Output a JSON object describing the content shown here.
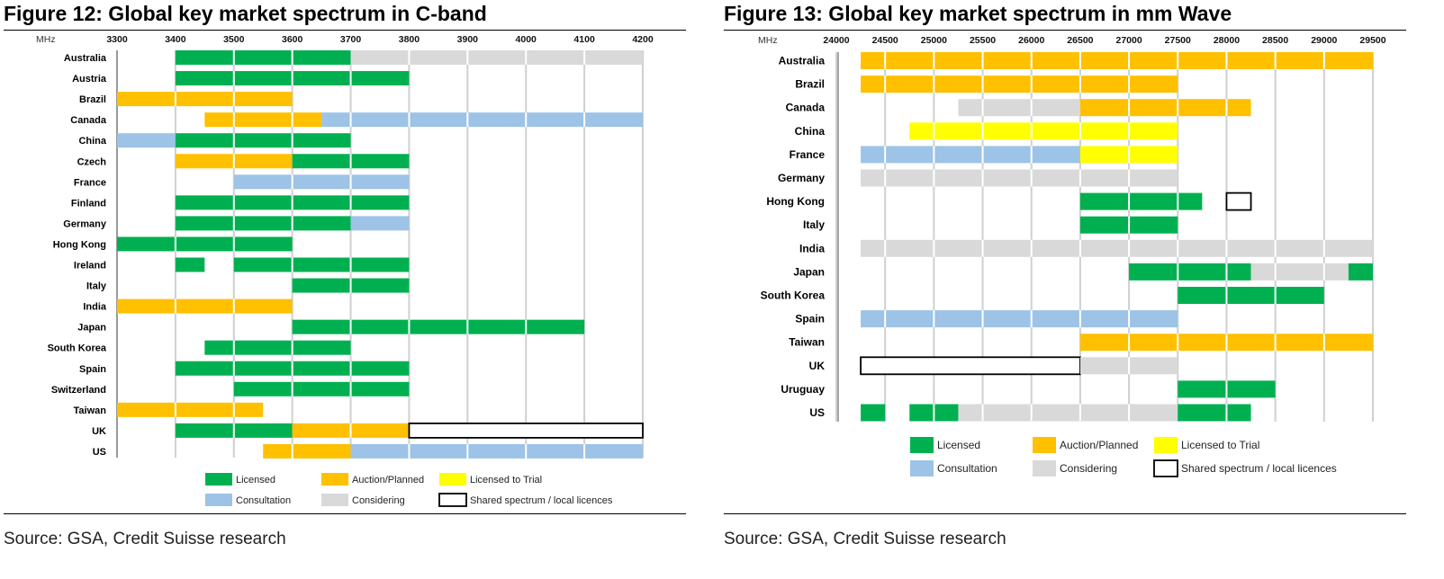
{
  "colors": {
    "Licensed": "#00B050",
    "Auction/Planned": "#FFC000",
    "Licensed to Trial": "#FFFF00",
    "Consultation": "#9DC3E6",
    "Considering": "#D9D9D9",
    "Shared spectrum / local licences": "#FFFFFF"
  },
  "chart_data": [
    {
      "type": "bar",
      "subtype": "horizontal range (spectrum allocation)",
      "title": "Figure 12: Global key market spectrum in C-band",
      "axis_unit": "MHz",
      "axis_position": "top",
      "xlim": [
        3300,
        4200
      ],
      "ticks": [
        "3300",
        "3400",
        "3500",
        "3600",
        "3700",
        "3800",
        "3900",
        "4000",
        "4100",
        "4200"
      ],
      "grid": true,
      "legend_position": "bottom",
      "source": "Source: GSA, Credit Suisse research",
      "legend": [
        [
          "Licensed",
          "Auction/Planned",
          "Licensed to Trial"
        ],
        [
          "Consultation",
          "Considering",
          "Shared spectrum / local licences"
        ]
      ],
      "categories": [
        "Australia",
        "Austria",
        "Brazil",
        "Canada",
        "China",
        "Czech",
        "France",
        "Finland",
        "Germany",
        "Hong Kong",
        "Ireland",
        "Italy",
        "India",
        "Japan",
        "South Korea",
        "Spain",
        "Switzerland",
        "Taiwan",
        "UK",
        "US"
      ],
      "segments": [
        [
          [
            3400,
            3700,
            "Licensed"
          ],
          [
            3700,
            4200,
            "Considering"
          ]
        ],
        [
          [
            3400,
            3800,
            "Licensed"
          ]
        ],
        [
          [
            3300,
            3600,
            "Auction/Planned"
          ]
        ],
        [
          [
            3450,
            3650,
            "Auction/Planned"
          ],
          [
            3650,
            4200,
            "Consultation"
          ]
        ],
        [
          [
            3300,
            3400,
            "Consultation"
          ],
          [
            3400,
            3700,
            "Licensed"
          ]
        ],
        [
          [
            3400,
            3600,
            "Auction/Planned"
          ],
          [
            3600,
            3800,
            "Licensed"
          ]
        ],
        [
          [
            3500,
            3800,
            "Consultation"
          ]
        ],
        [
          [
            3400,
            3800,
            "Licensed"
          ]
        ],
        [
          [
            3400,
            3700,
            "Licensed"
          ],
          [
            3700,
            3800,
            "Consultation"
          ]
        ],
        [
          [
            3300,
            3600,
            "Licensed"
          ]
        ],
        [
          [
            3400,
            3450,
            "Licensed"
          ],
          [
            3500,
            3800,
            "Licensed"
          ]
        ],
        [
          [
            3600,
            3800,
            "Licensed"
          ]
        ],
        [
          [
            3300,
            3600,
            "Auction/Planned"
          ]
        ],
        [
          [
            3600,
            4100,
            "Licensed"
          ]
        ],
        [
          [
            3450,
            3700,
            "Licensed"
          ]
        ],
        [
          [
            3400,
            3800,
            "Licensed"
          ]
        ],
        [
          [
            3500,
            3800,
            "Licensed"
          ]
        ],
        [
          [
            3300,
            3550,
            "Auction/Planned"
          ]
        ],
        [
          [
            3400,
            3600,
            "Licensed"
          ],
          [
            3600,
            3800,
            "Auction/Planned"
          ],
          [
            3800,
            4200,
            "Shared spectrum / local licences"
          ]
        ],
        [
          [
            3550,
            3700,
            "Auction/Planned"
          ],
          [
            3700,
            4200,
            "Consultation"
          ]
        ]
      ]
    },
    {
      "type": "bar",
      "subtype": "horizontal range (spectrum allocation)",
      "title": "Figure 13: Global key market spectrum in mm Wave",
      "axis_unit": "MHz",
      "axis_position": "top",
      "xlim": [
        24000,
        29500
      ],
      "ticks": [
        "24000",
        "24500",
        "25000",
        "25500",
        "26000",
        "26500",
        "27000",
        "27500",
        "28000",
        "28500",
        "29000",
        "29500"
      ],
      "grid": true,
      "legend_position": "bottom",
      "source": "Source: GSA, Credit Suisse research",
      "legend": [
        [
          "Licensed",
          "Auction/Planned",
          "Licensed to Trial"
        ],
        [
          "Consultation",
          "Considering",
          "Shared spectrum / local licences"
        ]
      ],
      "categories": [
        "Australia",
        "Brazil",
        "Canada",
        "China",
        "France",
        "Germany",
        "Hong Kong",
        "Italy",
        "India",
        "Japan",
        "South Korea",
        "Spain",
        "Taiwan",
        "UK",
        "Uruguay",
        "US"
      ],
      "segments": [
        [
          [
            24250,
            29500,
            "Auction/Planned"
          ]
        ],
        [
          [
            24250,
            27500,
            "Auction/Planned"
          ]
        ],
        [
          [
            25250,
            26500,
            "Considering"
          ],
          [
            26500,
            28250,
            "Auction/Planned"
          ]
        ],
        [
          [
            24750,
            27500,
            "Licensed to Trial"
          ]
        ],
        [
          [
            24250,
            26500,
            "Consultation"
          ],
          [
            26500,
            27500,
            "Licensed to Trial"
          ]
        ],
        [
          [
            24250,
            27500,
            "Considering"
          ]
        ],
        [
          [
            26500,
            27750,
            "Licensed"
          ],
          [
            28000,
            28250,
            "Shared spectrum / local licences"
          ]
        ],
        [
          [
            26500,
            27500,
            "Licensed"
          ]
        ],
        [
          [
            24250,
            29500,
            "Considering"
          ]
        ],
        [
          [
            27000,
            28250,
            "Licensed"
          ],
          [
            28250,
            29250,
            "Considering"
          ],
          [
            29250,
            29500,
            "Licensed"
          ]
        ],
        [
          [
            27500,
            29000,
            "Licensed"
          ]
        ],
        [
          [
            24250,
            27500,
            "Consultation"
          ]
        ],
        [
          [
            26500,
            29500,
            "Auction/Planned"
          ]
        ],
        [
          [
            24250,
            26500,
            "Shared spectrum / local licences"
          ],
          [
            26500,
            27500,
            "Considering"
          ]
        ],
        [
          [
            27500,
            28500,
            "Licensed"
          ]
        ],
        [
          [
            24250,
            24500,
            "Licensed"
          ],
          [
            24750,
            25250,
            "Licensed"
          ],
          [
            25250,
            27500,
            "Considering"
          ],
          [
            27500,
            28250,
            "Licensed"
          ]
        ]
      ]
    }
  ]
}
